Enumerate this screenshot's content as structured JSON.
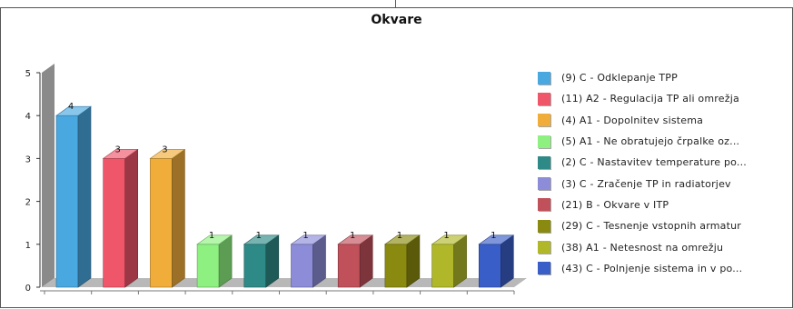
{
  "chart_data": {
    "type": "bar",
    "title": "Okvare",
    "xlabel": "",
    "ylabel": "",
    "ylim": [
      0,
      5
    ],
    "yticks": [
      0,
      1,
      2,
      3,
      4,
      5
    ],
    "grid": false,
    "style": "3d",
    "legend_position": "right",
    "categories": [
      "(9) C - Odklepanje TPP",
      "(11) A2 - Regulacija TP ali omrežja",
      "(4) A1 - Dopolnitev sistema",
      "(5) A1 - Ne obratujejo črpalke oz...",
      "(2) C - Nastavitev temperature po...",
      "(3) C - Zračenje TP in radiatorjev",
      "(21) B - Okvare v ITP",
      "(29) C - Tesnenje vstopnih armatur",
      "(38) A1 - Netesnost na omrežju",
      "(43) C - Polnjenje sistema in v po..."
    ],
    "values": [
      4,
      3,
      3,
      1,
      1,
      1,
      1,
      1,
      1,
      1
    ],
    "colors": [
      "#4aa8e0",
      "#f0566a",
      "#f0ad3a",
      "#8ef080",
      "#2e8a86",
      "#8c8cd8",
      "#c0505a",
      "#8a8a10",
      "#b0b82a",
      "#3a5ec8"
    ]
  }
}
